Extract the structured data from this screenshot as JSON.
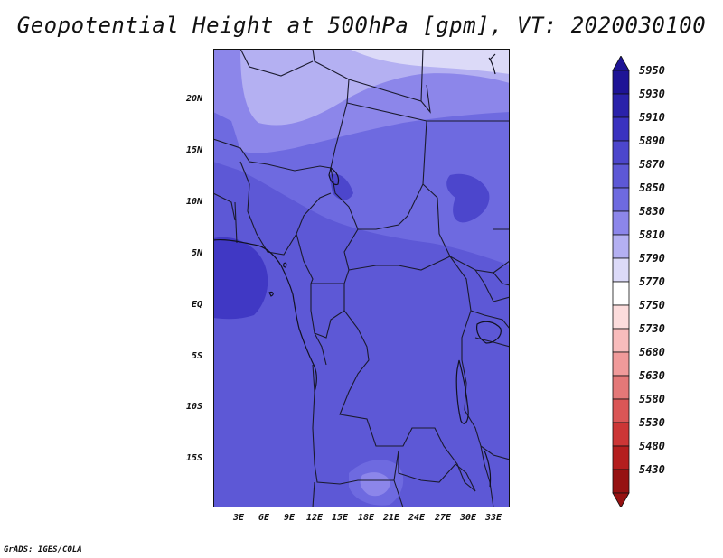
{
  "title": "Geopotential Height at 500hPa [gpm], VT: 2020030100",
  "credit": "GrADS: IGES/COLA",
  "map": {
    "lat_labels": [
      "20N",
      "15N",
      "10N",
      "5N",
      "EQ",
      "5S",
      "10S",
      "15S"
    ],
    "lon_labels": [
      "3E",
      "6E",
      "9E",
      "12E",
      "15E",
      "18E",
      "21E",
      "24E",
      "27E",
      "30E",
      "33E"
    ]
  },
  "colorbar": {
    "levels": [
      "5950",
      "5930",
      "5910",
      "5890",
      "5870",
      "5850",
      "5830",
      "5810",
      "5790",
      "5770",
      "5750",
      "5730",
      "5680",
      "5630",
      "5580",
      "5530",
      "5480",
      "5430"
    ],
    "colors": [
      "#1e1496",
      "#2a22aa",
      "#3a32c0",
      "#4c46cc",
      "#5d58d6",
      "#6e6ae0",
      "#8c86ea",
      "#b4b0f2",
      "#dcdaf8",
      "#ffffff",
      "#fcdcdc",
      "#f8bcbc",
      "#f09a9a",
      "#e47878",
      "#da5656",
      "#cc3636",
      "#b41e1e",
      "#961212"
    ]
  },
  "fill_colors": {
    "ocean_deep": "#4038c4",
    "base": "#5d58d6",
    "mid": "#6e6ae0",
    "light": "#8c86ea",
    "lighter": "#b4b0f2",
    "lightest": "#dcdaf8"
  }
}
